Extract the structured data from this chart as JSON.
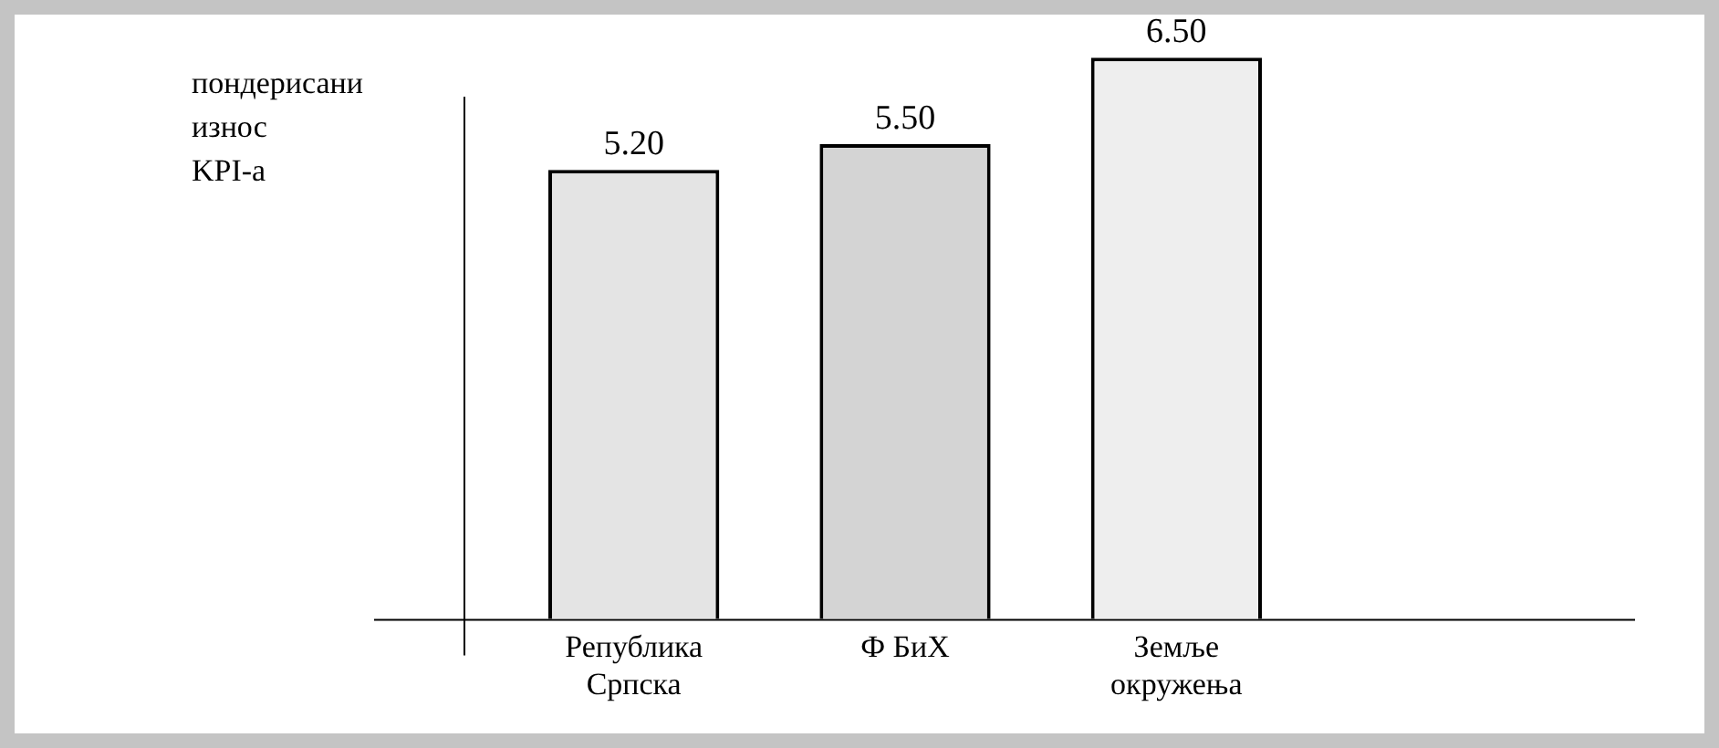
{
  "chart_data": {
    "type": "bar",
    "ylabel": "пондерисани износ KPI-а",
    "categories": [
      "Република Српска",
      "Ф БиХ",
      "Земље окружења"
    ],
    "values": [
      5.2,
      5.5,
      6.5
    ],
    "colors": [
      "#e4e4e4",
      "#d4d4d4",
      "#eeeeee"
    ],
    "value_labels": [
      "5.20",
      "5.50",
      "6.50"
    ],
    "tick_labels": "x",
    "grid": false,
    "legend": false
  }
}
